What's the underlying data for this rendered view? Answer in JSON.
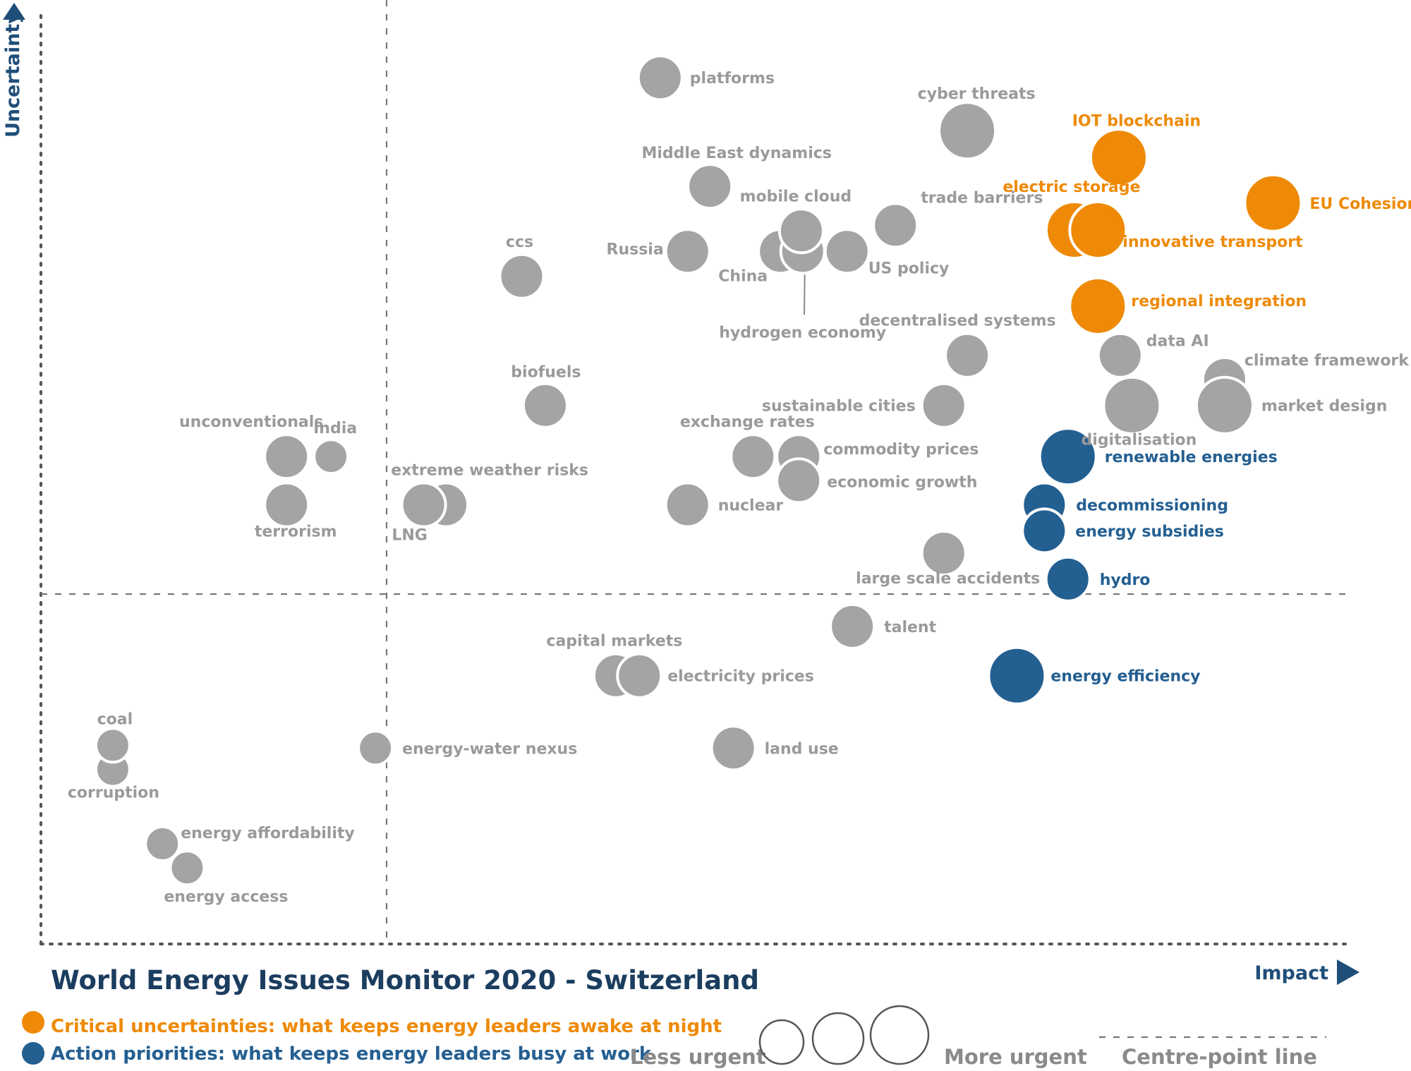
{
  "chart_data": {
    "type": "scatter",
    "title": "World Energy Issues Monitor 2020 - Switzerland",
    "xlabel": "Impact",
    "ylabel": "Uncertainty",
    "xlim": [
      0,
      100
    ],
    "ylim": [
      0,
      100
    ],
    "grid": false,
    "centre_point": {
      "x": 26.4,
      "y": 37.5
    },
    "legend": {
      "categories": [
        {
          "key": "critical",
          "label": "Critical uncertainties: what keeps energy leaders awake at night",
          "color": "#ee8a07"
        },
        {
          "key": "action",
          "label": "Action priorities: what keeps energy leaders busy at work",
          "color": "#245f91"
        }
      ],
      "size_less": "Less urgent",
      "size_more": "More urgent",
      "centre_line_label": "Centre-point  line"
    },
    "colors": {
      "weak_signal": "#a4a4a4",
      "critical": "#ee8a07",
      "action": "#245f91",
      "axis": "#1f4e79"
    },
    "points": [
      {
        "name": "platforms",
        "x": 47.4,
        "y": 93.3,
        "urgency": 2,
        "category": "other"
      },
      {
        "name": "cyber threats",
        "x": 70.9,
        "y": 87.6,
        "urgency": 3,
        "category": "other"
      },
      {
        "name": "IOT blockchain",
        "x": 82.5,
        "y": 84.7,
        "urgency": 3,
        "category": "critical"
      },
      {
        "name": "Middle East dynamics",
        "x": 51.2,
        "y": 81.6,
        "urgency": 2,
        "category": "other"
      },
      {
        "name": "EU Cohesion",
        "x": 94.3,
        "y": 79.8,
        "urgency": 3,
        "category": "critical"
      },
      {
        "name": "electric storage",
        "x": 79.1,
        "y": 76.9,
        "urgency": 3,
        "category": "critical"
      },
      {
        "name": "innovative transport",
        "x": 80.9,
        "y": 76.9,
        "urgency": 3,
        "category": "critical"
      },
      {
        "name": "trade barriers",
        "x": 65.4,
        "y": 77.4,
        "urgency": 2,
        "category": "other"
      },
      {
        "name": "mobile cloud",
        "x": 58.2,
        "y": 76.8,
        "urgency": 2,
        "category": "other"
      },
      {
        "name": "China",
        "x": 56.6,
        "y": 74.6,
        "urgency": 2,
        "category": "other"
      },
      {
        "name": "hydrogen economy",
        "x": 58.3,
        "y": 74.6,
        "urgency": 2,
        "category": "other"
      },
      {
        "name": "US policy",
        "x": 61.7,
        "y": 74.6,
        "urgency": 2,
        "category": "other"
      },
      {
        "name": "Russia",
        "x": 49.5,
        "y": 74.6,
        "urgency": 2,
        "category": "other"
      },
      {
        "name": "ccs",
        "x": 36.8,
        "y": 71.9,
        "urgency": 2,
        "category": "other"
      },
      {
        "name": "regional integration",
        "x": 80.9,
        "y": 68.7,
        "urgency": 3,
        "category": "critical"
      },
      {
        "name": "decentralised systems",
        "x": 70.9,
        "y": 63.4,
        "urgency": 2,
        "category": "other"
      },
      {
        "name": "data AI",
        "x": 82.6,
        "y": 63.4,
        "urgency": 2,
        "category": "other"
      },
      {
        "name": "climate framework",
        "x": 90.6,
        "y": 60.8,
        "urgency": 2,
        "category": "other"
      },
      {
        "name": "biofuels",
        "x": 38.6,
        "y": 58.0,
        "urgency": 2,
        "category": "other"
      },
      {
        "name": "sustainable cities",
        "x": 69.1,
        "y": 58.0,
        "urgency": 2,
        "category": "other"
      },
      {
        "name": "digitalisation",
        "x": 83.5,
        "y": 58.0,
        "urgency": 3,
        "category": "other"
      },
      {
        "name": "market design",
        "x": 90.6,
        "y": 58.0,
        "urgency": 3,
        "category": "other"
      },
      {
        "name": "unconventionals",
        "x": 18.8,
        "y": 52.5,
        "urgency": 2,
        "category": "other"
      },
      {
        "name": "India",
        "x": 22.2,
        "y": 52.5,
        "urgency": 1,
        "category": "other"
      },
      {
        "name": "exchange rates",
        "x": 54.5,
        "y": 52.5,
        "urgency": 2,
        "category": "other"
      },
      {
        "name": "commodity prices",
        "x": 58.0,
        "y": 52.5,
        "urgency": 2,
        "category": "other"
      },
      {
        "name": "renewable energies",
        "x": 78.6,
        "y": 52.5,
        "urgency": 3,
        "category": "action"
      },
      {
        "name": "economic growth",
        "x": 58.0,
        "y": 49.9,
        "urgency": 2,
        "category": "other"
      },
      {
        "name": "terrorism",
        "x": 18.8,
        "y": 47.3,
        "urgency": 2,
        "category": "other"
      },
      {
        "name": "extreme weather risks",
        "x": 31.0,
        "y": 47.3,
        "urgency": 2,
        "category": "other"
      },
      {
        "name": "LNG",
        "x": 29.3,
        "y": 47.3,
        "urgency": 2,
        "category": "other"
      },
      {
        "name": "nuclear",
        "x": 49.5,
        "y": 47.3,
        "urgency": 2,
        "category": "other"
      },
      {
        "name": "decommissioning",
        "x": 76.8,
        "y": 47.3,
        "urgency": 2,
        "category": "action"
      },
      {
        "name": "energy subsidies",
        "x": 76.8,
        "y": 44.5,
        "urgency": 2,
        "category": "action"
      },
      {
        "name": "large scale accidents",
        "x": 69.1,
        "y": 42.1,
        "urgency": 2,
        "category": "other"
      },
      {
        "name": "hydro",
        "x": 78.6,
        "y": 39.3,
        "urgency": 2,
        "category": "action"
      },
      {
        "name": "talent",
        "x": 62.1,
        "y": 34.2,
        "urgency": 2,
        "category": "other"
      },
      {
        "name": "capital markets",
        "x": 44.0,
        "y": 28.9,
        "urgency": 2,
        "category": "other"
      },
      {
        "name": "electricity prices",
        "x": 45.8,
        "y": 28.9,
        "urgency": 2,
        "category": "other"
      },
      {
        "name": "energy efficiency",
        "x": 74.7,
        "y": 28.9,
        "urgency": 3,
        "category": "action"
      },
      {
        "name": "coal",
        "x": 5.5,
        "y": 21.4,
        "urgency": 1,
        "category": "other"
      },
      {
        "name": "corruption",
        "x": 5.5,
        "y": 18.8,
        "urgency": 1,
        "category": "other"
      },
      {
        "name": "energy-water nexus",
        "x": 25.6,
        "y": 21.1,
        "urgency": 1,
        "category": "other"
      },
      {
        "name": "land use",
        "x": 53.0,
        "y": 21.1,
        "urgency": 2,
        "category": "other"
      },
      {
        "name": "energy affordability",
        "x": 9.3,
        "y": 10.8,
        "urgency": 1,
        "category": "other"
      },
      {
        "name": "energy access",
        "x": 11.2,
        "y": 8.2,
        "urgency": 1,
        "category": "other"
      }
    ]
  }
}
